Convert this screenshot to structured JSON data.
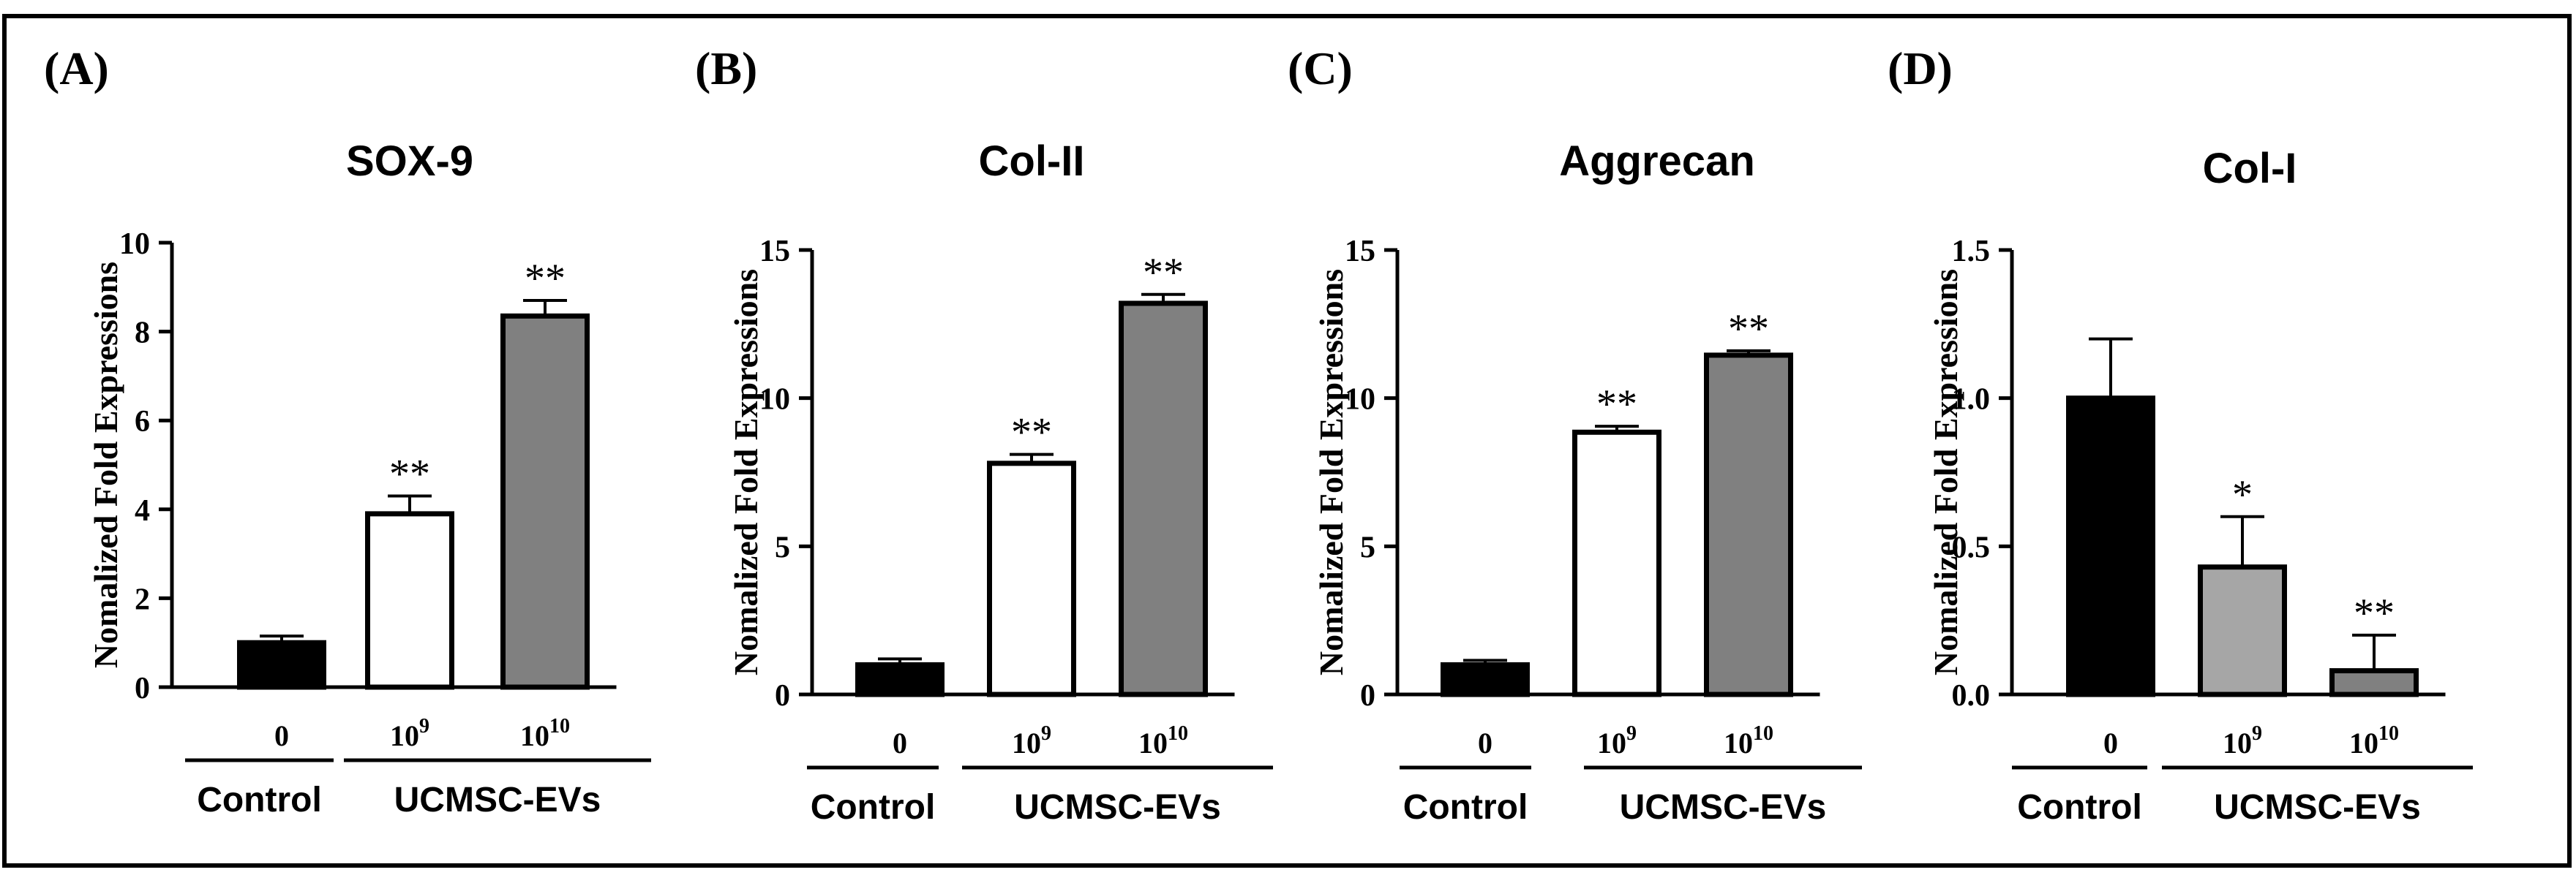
{
  "chart_data": [
    {
      "type": "bar",
      "panel": "(A)",
      "title": "SOX-9",
      "ylabel": "Nomalized Fold Expressions",
      "ylim": [
        0,
        10
      ],
      "yticks": [
        "0",
        "2",
        "4",
        "6",
        "8",
        "10"
      ],
      "categories": [
        {
          "base": "0",
          "exp": ""
        },
        {
          "base": "10",
          "exp": "9"
        },
        {
          "base": "10",
          "exp": "10"
        }
      ],
      "values": [
        1.0,
        3.9,
        8.35
      ],
      "errors": [
        0.15,
        0.4,
        0.35
      ],
      "fills": [
        "#000000",
        "#ffffff",
        "#808080"
      ],
      "significance": [
        "",
        "**",
        "**"
      ],
      "groups": [
        "Control",
        "UCMSC-EVs"
      ]
    },
    {
      "type": "bar",
      "panel": "(B)",
      "title": "Col-II",
      "ylabel": "Nomalized Fold Expressions",
      "ylim": [
        0,
        15
      ],
      "yticks": [
        "0",
        "5",
        "10",
        "15"
      ],
      "categories": [
        {
          "base": "0",
          "exp": ""
        },
        {
          "base": "10",
          "exp": "9"
        },
        {
          "base": "10",
          "exp": "10"
        }
      ],
      "values": [
        1.0,
        7.8,
        13.2
      ],
      "errors": [
        0.2,
        0.3,
        0.3
      ],
      "fills": [
        "#000000",
        "#ffffff",
        "#808080"
      ],
      "significance": [
        "",
        "**",
        "**"
      ],
      "groups": [
        "Control",
        "UCMSC-EVs"
      ]
    },
    {
      "type": "bar",
      "panel": "(C)",
      "title": "Aggrecan",
      "ylabel": "Nomalized Fold Expressions",
      "ylim": [
        0,
        15
      ],
      "yticks": [
        "0",
        "5",
        "10",
        "15"
      ],
      "categories": [
        {
          "base": "0",
          "exp": ""
        },
        {
          "base": "10",
          "exp": "9"
        },
        {
          "base": "10",
          "exp": "10"
        }
      ],
      "values": [
        1.0,
        8.85,
        11.45
      ],
      "errors": [
        0.15,
        0.2,
        0.15
      ],
      "fills": [
        "#000000",
        "#ffffff",
        "#808080"
      ],
      "significance": [
        "",
        "**",
        "**"
      ],
      "groups": [
        "Control",
        "UCMSC-EVs"
      ]
    },
    {
      "type": "bar",
      "panel": "(D)",
      "title": "Col-I",
      "ylabel": "Nomalized Fold Expressions",
      "ylim": [
        0,
        1.5
      ],
      "yticks": [
        "0.0",
        "0.5",
        "1.0",
        "1.5"
      ],
      "categories": [
        {
          "base": "0",
          "exp": ""
        },
        {
          "base": "10",
          "exp": "9"
        },
        {
          "base": "10",
          "exp": "10"
        }
      ],
      "values": [
        1.0,
        0.43,
        0.08
      ],
      "errors": [
        0.2,
        0.17,
        0.12
      ],
      "fills": [
        "#000000",
        "#a6a6a6",
        "#808080"
      ],
      "significance": [
        "",
        "*",
        "**"
      ],
      "groups": [
        "Control",
        "UCMSC-EVs"
      ]
    }
  ]
}
